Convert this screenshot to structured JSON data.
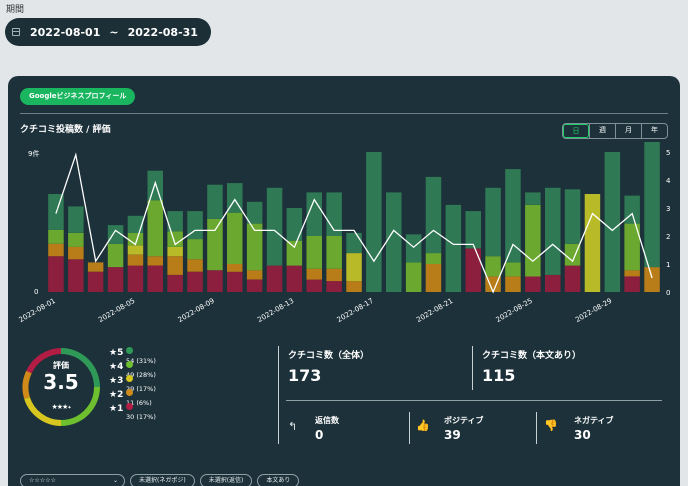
{
  "period_label": "期間",
  "date_range": {
    "start": "2022-08-01",
    "separator": "~",
    "end": "2022-08-31"
  },
  "source_badge": "Googleビジネスプロフィール",
  "chart_title": "クチコミ投稿数 / 評価",
  "period_tabs": [
    "日",
    "週",
    "月",
    "年"
  ],
  "colors": {
    "star5": "#2f7a55",
    "star4": "#6ba82f",
    "star3": "#b9ba28",
    "star2": "#b87d18",
    "star1": "#8c1f3e",
    "line": "#ffffff",
    "accent": "#19b55f"
  },
  "chart_data": {
    "type": "bar",
    "left_axis": {
      "ticks": [
        "9件",
        "0"
      ],
      "max": 9
    },
    "right_axis": {
      "ticks": [
        "5",
        "4",
        "3",
        "2",
        "1",
        "0"
      ],
      "max": 5
    },
    "x_tick_labels": [
      "2022-08-01",
      "2022-08-05",
      "2022-08-09",
      "2022-08-13",
      "2022-08-17",
      "2022-08-21",
      "2022-08-25",
      "2022-08-29"
    ],
    "x_tick_days": [
      1,
      5,
      9,
      13,
      17,
      21,
      25,
      29
    ],
    "days": [
      1,
      2,
      3,
      4,
      5,
      6,
      7,
      8,
      9,
      10,
      11,
      12,
      13,
      14,
      15,
      16,
      17,
      18,
      19,
      20,
      21,
      22,
      23,
      24,
      25,
      26,
      27,
      28,
      29,
      30,
      31
    ],
    "series": [
      {
        "name": "★1",
        "values": [
          2.3,
          2.1,
          1.3,
          1.6,
          1.7,
          1.7,
          1.1,
          1.3,
          1.4,
          1.3,
          0.8,
          1.7,
          1.7,
          0.8,
          0.7,
          0,
          0,
          0,
          0,
          0,
          0,
          2.8,
          0,
          0,
          1.0,
          1.1,
          1.7,
          0,
          0,
          1.0,
          0
        ]
      },
      {
        "name": "★2",
        "values": [
          0.8,
          0.8,
          0.6,
          0,
          0.7,
          0.6,
          1.2,
          0.8,
          0,
          0.5,
          0.6,
          0,
          0,
          0.7,
          0.8,
          0.7,
          0,
          0,
          0,
          1.8,
          0,
          0,
          1.0,
          1.0,
          0,
          0,
          0,
          0,
          0,
          0.4,
          1.6
        ]
      },
      {
        "name": "★3",
        "values": [
          0,
          0,
          0,
          0,
          0.6,
          0,
          0.6,
          0,
          0,
          0,
          0,
          0,
          0,
          0,
          0,
          1.8,
          0,
          0,
          0,
          0,
          0,
          0,
          0,
          0,
          0,
          0,
          0,
          6.3,
          0,
          0,
          0
        ]
      },
      {
        "name": "★4",
        "values": [
          0.9,
          0.9,
          0,
          1.5,
          0.8,
          3.6,
          1.0,
          1.3,
          3.3,
          3.3,
          3.0,
          0,
          1.6,
          2.1,
          2.1,
          0,
          0,
          0,
          1.9,
          0.7,
          0,
          0,
          1.3,
          0.9,
          4.6,
          0,
          1.4,
          0,
          0,
          3.0,
          0
        ]
      },
      {
        "name": "★5",
        "values": [
          2.3,
          1.7,
          0,
          1.2,
          1.1,
          1.9,
          1.3,
          1.8,
          2.2,
          1.9,
          1.4,
          5.0,
          2.1,
          2.8,
          2.8,
          1.3,
          9.0,
          6.4,
          1.8,
          4.9,
          5.6,
          2.4,
          4.4,
          6.0,
          0.8,
          5.6,
          3.5,
          0,
          9.0,
          1.8,
          8.3
        ]
      }
    ],
    "avg_rating": [
      2.8,
      4.9,
      1.1,
      2.2,
      1.7,
      3.9,
      1.7,
      2.2,
      2.2,
      3.3,
      2.2,
      2.2,
      1.6,
      3.3,
      2.2,
      2.2,
      1.1,
      2.2,
      1.6,
      2.2,
      1.7,
      1.7,
      0.0,
      1.7,
      1.1,
      1.7,
      1.1,
      2.8,
      2.2,
      2.8,
      0.5
    ]
  },
  "rating": {
    "label": "評価",
    "value": "3.5",
    "stars": "★★★",
    "half_star": "✦"
  },
  "distribution": [
    {
      "star": "★5",
      "count": "54",
      "pct": "(31%)",
      "color": "#2f9a58"
    },
    {
      "star": "★4",
      "count": "49",
      "pct": "(28%)",
      "color": "#6ec02f"
    },
    {
      "star": "★3",
      "count": "29",
      "pct": "(17%)",
      "color": "#d6c61f"
    },
    {
      "star": "★2",
      "count": "11",
      "pct": "(6%)",
      "color": "#d08a1a"
    },
    {
      "star": "★1",
      "count": "30",
      "pct": "(17%)",
      "color": "#b31d45"
    }
  ],
  "stats": {
    "total_label": "クチコミ数（全体）",
    "total_value": "173",
    "text_label": "クチコミ数（本文あり）",
    "text_value": "115",
    "reply_label": "返信数",
    "reply_value": "0",
    "positive_label": "ポジティブ",
    "positive_value": "39",
    "negative_label": "ネガティブ",
    "negative_value": "30"
  },
  "filters": {
    "rating_select": "☆☆☆☆☆",
    "chip1": "未選択(ネガポジ)",
    "chip2": "未選択(返信)",
    "chip3": "本文あり"
  }
}
